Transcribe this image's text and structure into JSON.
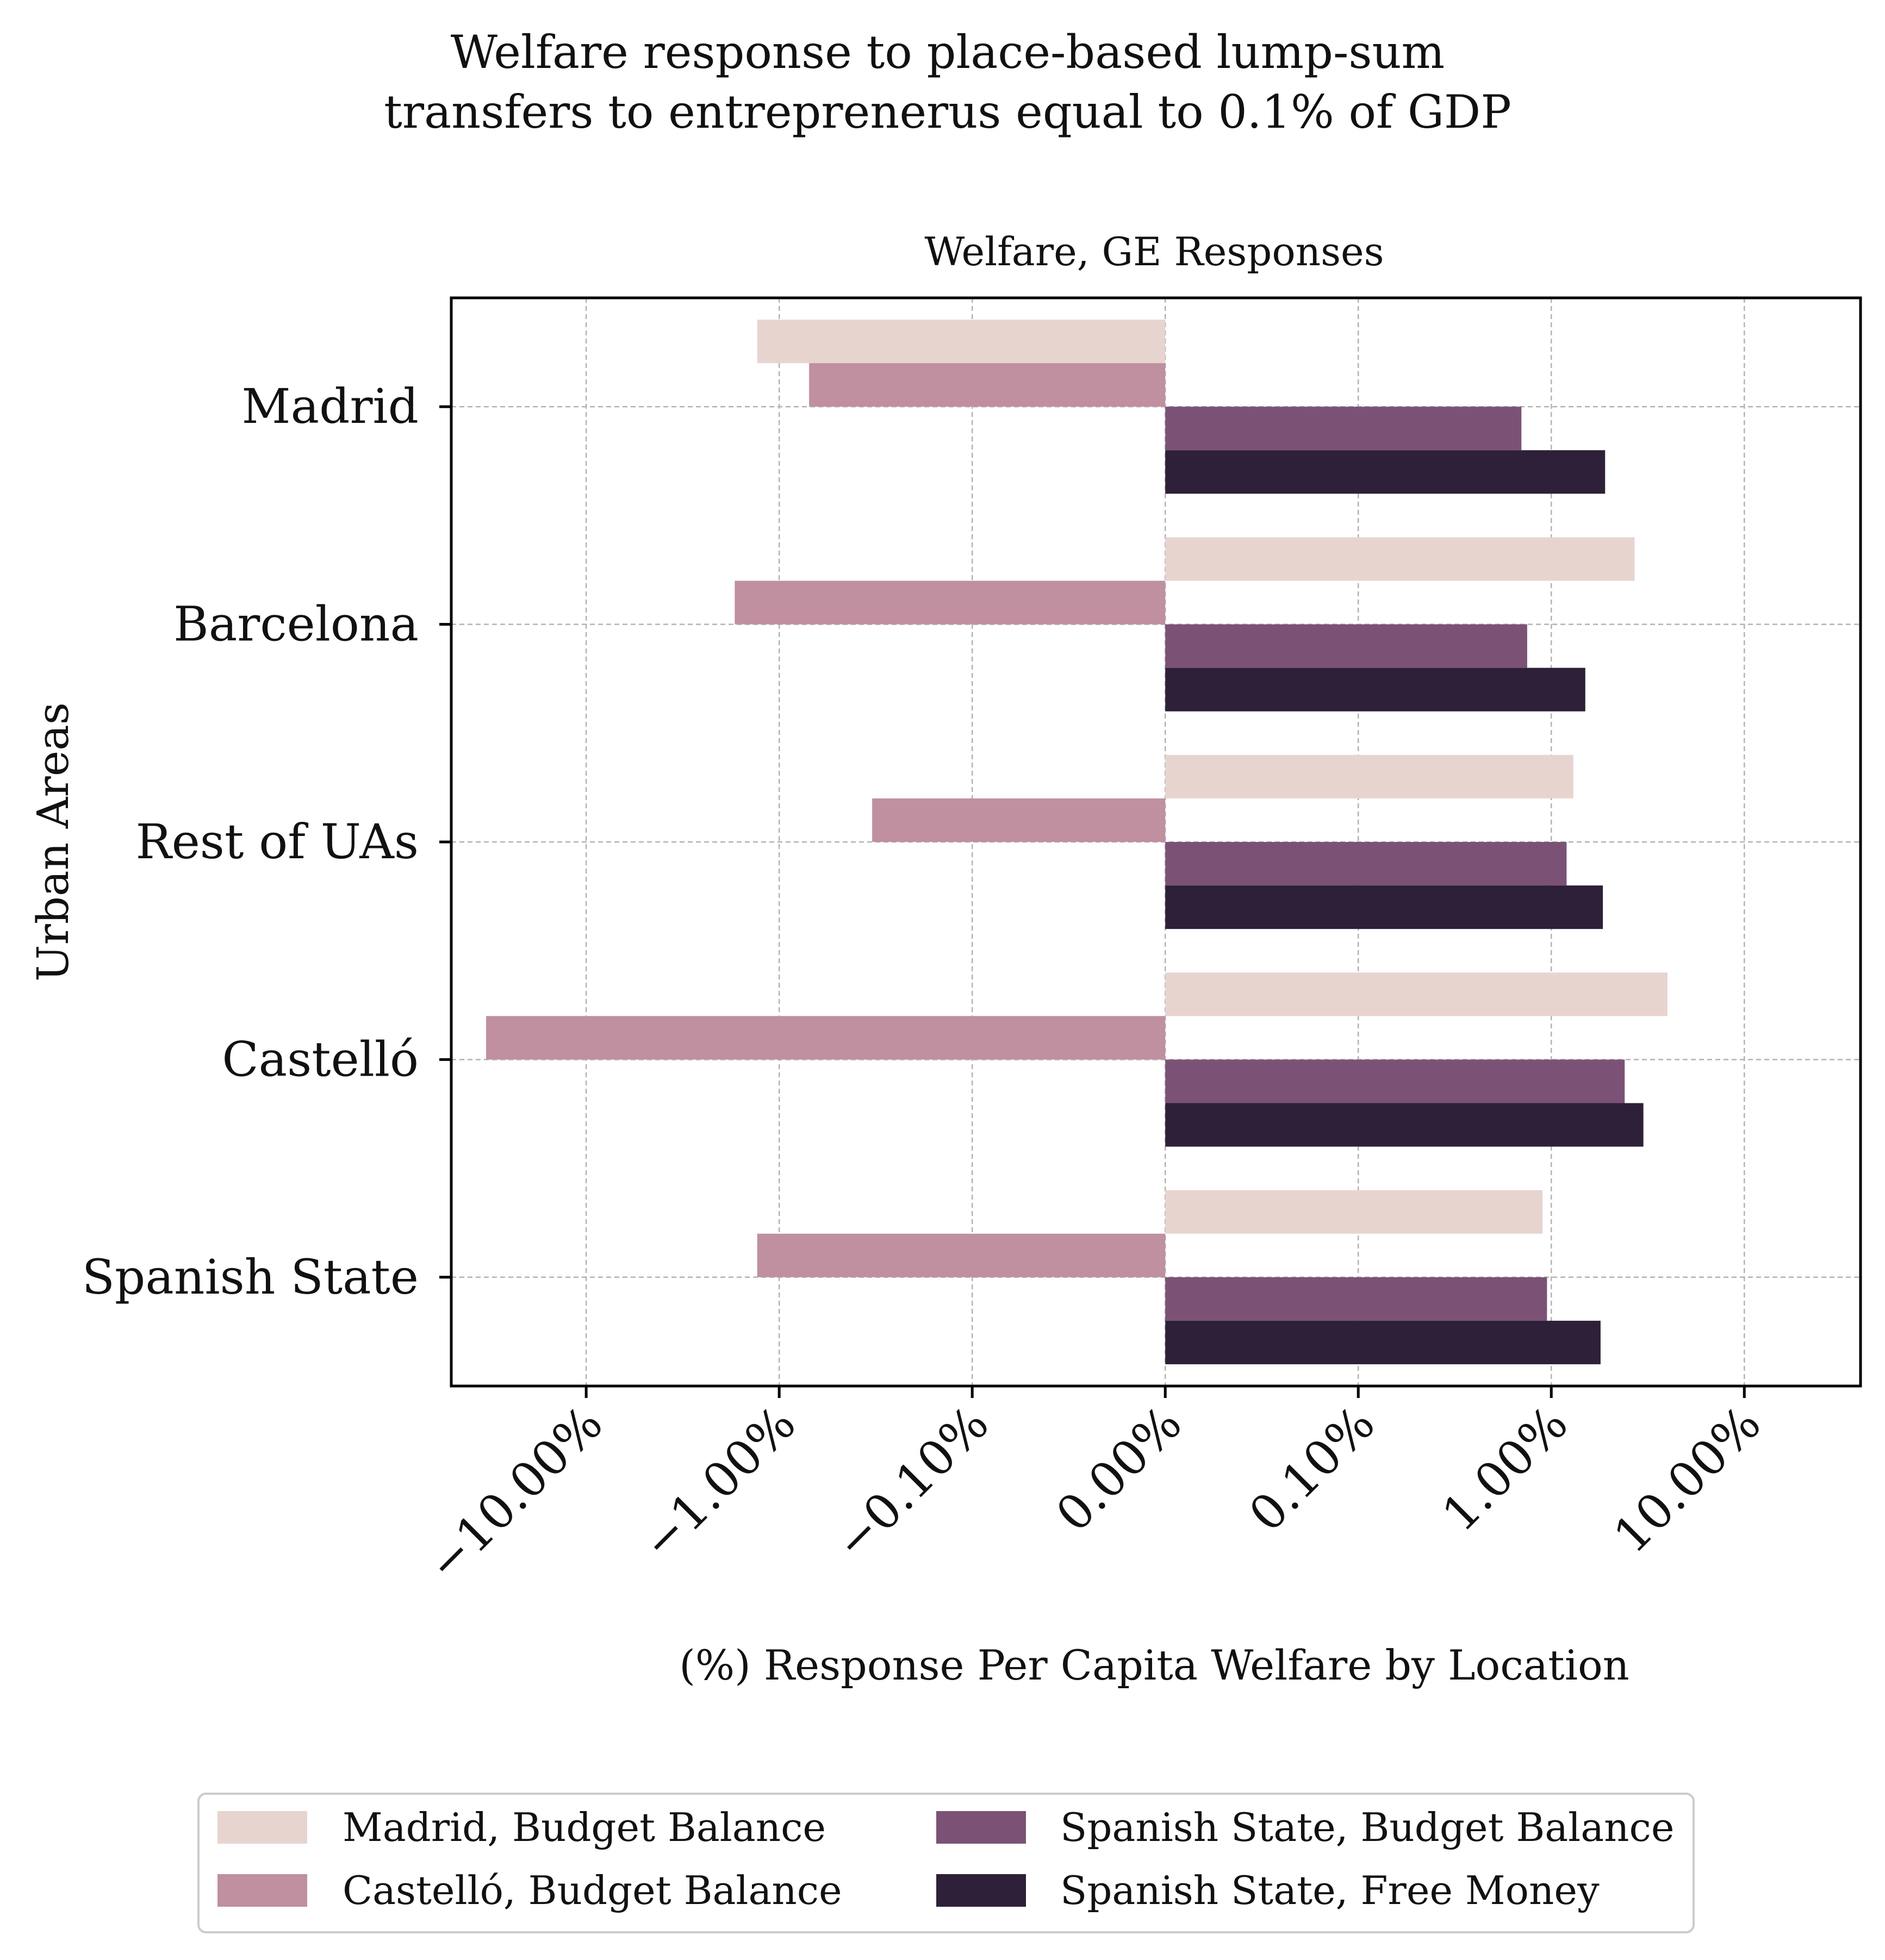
{
  "figure": {
    "suptitle_lines": [
      "Welfare response to place-based lump-sum",
      "transfers to entreprenerus equal to 0.1% of GDP"
    ]
  },
  "chart_data": {
    "type": "bar",
    "orientation": "horizontal",
    "title": "Welfare, GE Responses",
    "xlabel": "(%) Response Per Capita Welfare by Location",
    "ylabel": "Urban Areas",
    "x_scale": "symlog",
    "x_scale_linthresh": 0.1,
    "xlim": [
      -50,
      40
    ],
    "x_ticks": [
      -10,
      -1,
      -0.1,
      0,
      0.1,
      1,
      10
    ],
    "x_tick_labels": [
      "−10.00%",
      "−1.00%",
      "−0.10%",
      "0.00%",
      "0.10%",
      "1.00%",
      "10.00%"
    ],
    "grid": true,
    "legend_position": "bottom-center",
    "legend_columns": 2,
    "categories": [
      "Madrid",
      "Barcelona",
      "Rest of UAs",
      "Castelló",
      "Spanish State"
    ],
    "series": [
      {
        "name": "Madrid, Budget Balance",
        "color": "#e8d4cf",
        "values": [
          -1.3,
          2.7,
          1.3,
          4.0,
          0.9
        ]
      },
      {
        "name": "Castelló, Budget Balance",
        "color": "#c08fa0",
        "values": [
          -0.7,
          -1.7,
          -0.33,
          -33.0,
          -1.3
        ]
      },
      {
        "name": "Spanish State, Budget Balance",
        "color": "#7b5276",
        "values": [
          0.7,
          0.75,
          1.2,
          2.4,
          0.95
        ]
      },
      {
        "name": "Spanish State, Free Money",
        "color": "#2e2038",
        "values": [
          1.9,
          1.5,
          1.85,
          3.0,
          1.8
        ]
      }
    ]
  }
}
